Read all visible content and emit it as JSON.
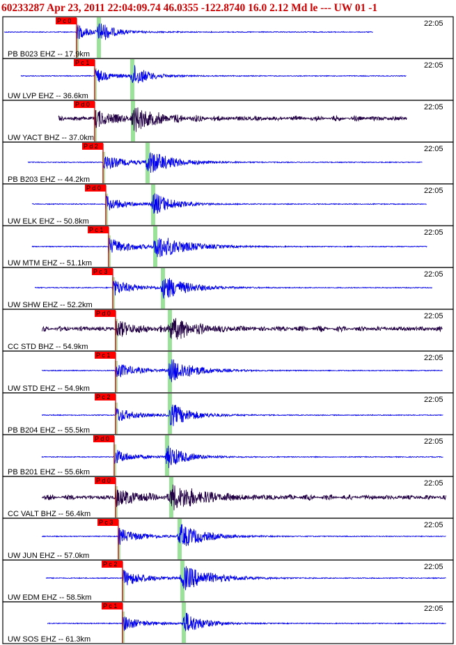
{
  "header": {
    "text": "60233287 Apr 23, 2011 22:04:09.74   46.0355 -122.8740 16.0 2.12 Md le --- UW 01  -1"
  },
  "colors": {
    "trace_ehz": "#0000ee",
    "trace_bhz": "#220044",
    "p_pick": "#dd0000",
    "p_pick_label_bg": "#ff0000",
    "s_window": "#88dd88",
    "border": "#000000",
    "header_text": "#cc0000"
  },
  "chart_data": {
    "type": "seismogram",
    "title": "60233287 Apr 23, 2011 22:04:09.74   46.0355 -122.8740 16.0 2.12 Md le --- UW 01  -1",
    "time_label": "22:05",
    "traces": [
      {
        "label": "PB B023 EHZ -- 17.9km",
        "component": "EHZ",
        "distance_km": 17.9,
        "pick": "P c 0"
      },
      {
        "label": "UW LVP EHZ -- 36.6km",
        "component": "EHZ",
        "distance_km": 36.6,
        "pick": "P c 1"
      },
      {
        "label": "UW YACT BHZ -- 37.0km",
        "component": "BHZ",
        "distance_km": 37.0,
        "pick": "P d 0"
      },
      {
        "label": "PB B203 EHZ -- 44.2km",
        "component": "EHZ",
        "distance_km": 44.2,
        "pick": "P d 2"
      },
      {
        "label": "UW ELK EHZ -- 50.8km",
        "component": "EHZ",
        "distance_km": 50.8,
        "pick": "P d 0"
      },
      {
        "label": "UW MTM EHZ -- 51.1km",
        "component": "EHZ",
        "distance_km": 51.1,
        "pick": "P c 1"
      },
      {
        "label": "UW SHW EHZ -- 52.2km",
        "component": "EHZ",
        "distance_km": 52.2,
        "pick": "P c 3"
      },
      {
        "label": "CC STD BHZ -- 54.9km",
        "component": "BHZ",
        "distance_km": 54.9,
        "pick": "P d 0"
      },
      {
        "label": "UW STD EHZ -- 54.9km",
        "component": "EHZ",
        "distance_km": 54.9,
        "pick": "P c 1"
      },
      {
        "label": "PB B204 EHZ -- 55.5km",
        "component": "EHZ",
        "distance_km": 55.5,
        "pick": "P c 2"
      },
      {
        "label": "PB B201 EHZ -- 55.6km",
        "component": "EHZ",
        "distance_km": 55.6,
        "pick": "P d 0"
      },
      {
        "label": "CC VALT BHZ -- 56.4km",
        "component": "BHZ",
        "distance_km": 56.4,
        "pick": "P d 0"
      },
      {
        "label": "UW JUN EHZ -- 57.0km",
        "component": "EHZ",
        "distance_km": 57.0,
        "pick": "P c 3"
      },
      {
        "label": "UW EDM EHZ -- 58.5km",
        "component": "EHZ",
        "distance_km": 58.5,
        "pick": "P c 2"
      },
      {
        "label": "UW SOS EHZ -- 61.3km",
        "component": "EHZ",
        "distance_km": 61.3,
        "pick": "P c 1"
      }
    ]
  }
}
